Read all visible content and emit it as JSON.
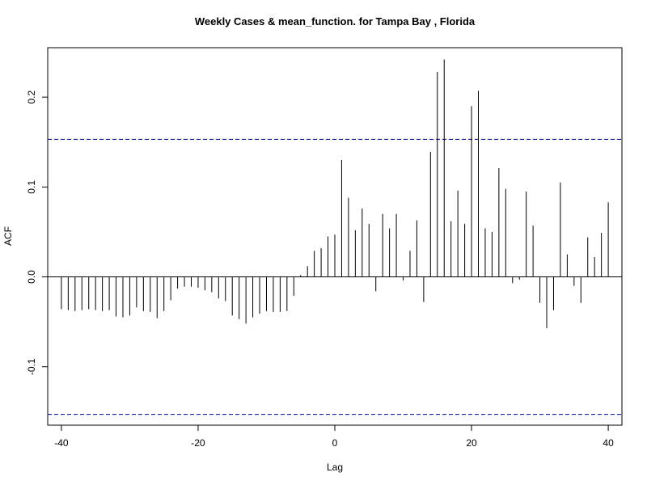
{
  "chart_data": {
    "type": "bar",
    "subtype": "acf-lag-plot",
    "title": "Weekly Cases & mean_function. for Tampa Bay , Florida",
    "xlabel": "Lag",
    "ylabel": "ACF",
    "xlim": [
      -42,
      42
    ],
    "ylim": [
      -0.165,
      0.255
    ],
    "x_ticks": [
      -40,
      -20,
      0,
      20,
      40
    ],
    "x_tick_labels": [
      "-40",
      "-20",
      "0",
      "20",
      "40"
    ],
    "y_ticks": [
      -0.1,
      0.0,
      0.1,
      0.2
    ],
    "y_tick_labels": [
      "-0.1",
      "0.0",
      "0.1",
      "0.2"
    ],
    "confidence_bound": 0.153,
    "colors": {
      "bars": "#000000",
      "confidence": "#00008b",
      "zero_line": "#000000"
    },
    "x": [
      -40,
      -39,
      -38,
      -37,
      -36,
      -35,
      -34,
      -33,
      -32,
      -31,
      -30,
      -29,
      -28,
      -27,
      -26,
      -25,
      -24,
      -23,
      -22,
      -21,
      -20,
      -19,
      -18,
      -17,
      -16,
      -15,
      -14,
      -13,
      -12,
      -11,
      -10,
      -9,
      -8,
      -7,
      -6,
      -5,
      -4,
      -3,
      -2,
      -1,
      0,
      1,
      2,
      3,
      4,
      5,
      6,
      7,
      8,
      9,
      10,
      11,
      12,
      13,
      14,
      15,
      16,
      17,
      18,
      19,
      20,
      21,
      22,
      23,
      24,
      25,
      26,
      27,
      28,
      29,
      30,
      31,
      32,
      33,
      34,
      35,
      36,
      37,
      38,
      39,
      40
    ],
    "values": [
      -0.036,
      -0.037,
      -0.038,
      -0.037,
      -0.036,
      -0.037,
      -0.038,
      -0.037,
      -0.044,
      -0.045,
      -0.043,
      -0.034,
      -0.038,
      -0.039,
      -0.046,
      -0.038,
      -0.026,
      -0.013,
      -0.011,
      -0.011,
      -0.012,
      -0.015,
      -0.017,
      -0.024,
      -0.027,
      -0.043,
      -0.047,
      -0.052,
      -0.045,
      -0.041,
      -0.038,
      -0.039,
      -0.039,
      -0.038,
      -0.021,
      0.002,
      0.012,
      0.029,
      0.032,
      0.045,
      0.047,
      0.13,
      0.088,
      0.052,
      0.076,
      0.059,
      -0.016,
      0.07,
      0.054,
      0.07,
      -0.004,
      0.029,
      0.063,
      -0.028,
      0.139,
      0.228,
      0.242,
      0.062,
      0.096,
      0.059,
      0.19,
      0.207,
      0.054,
      0.05,
      0.121,
      0.098,
      -0.007,
      -0.003,
      0.095,
      0.057,
      -0.029,
      -0.057,
      -0.037,
      0.105,
      0.025,
      -0.01,
      -0.029,
      0.044,
      0.022,
      0.049,
      0.083
    ]
  }
}
